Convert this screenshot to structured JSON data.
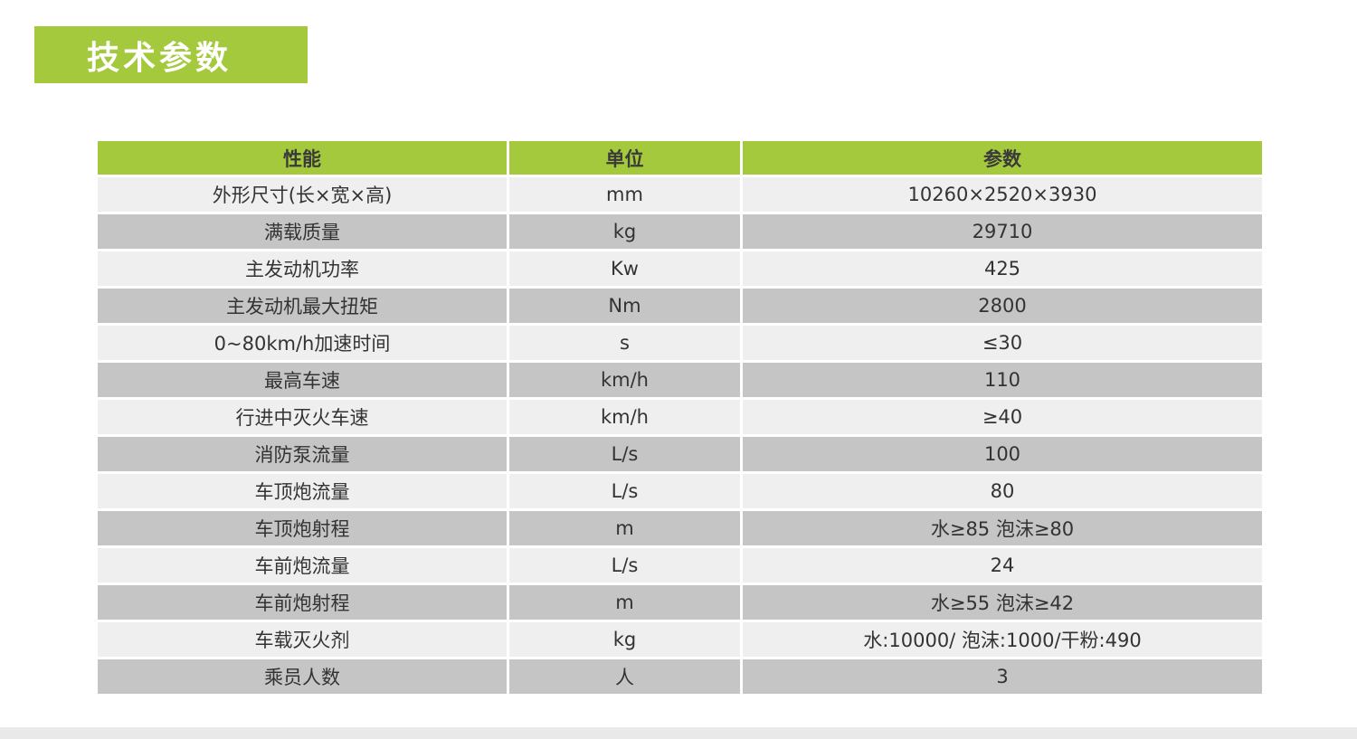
{
  "title": "技术参数",
  "colors": {
    "accent_green": "#a4c93d",
    "row_light": "#efefef",
    "row_dark": "#c5c5c5",
    "header_text": "#3a3a3a",
    "title_text": "#ffffff",
    "body_text": "#333333"
  },
  "table": {
    "headers": [
      "性能",
      "单位",
      "参数"
    ],
    "rows": [
      [
        "外形尺寸(长×宽×高)",
        "mm",
        "10260×2520×3930"
      ],
      [
        "满载质量",
        "kg",
        "29710"
      ],
      [
        "主发动机功率",
        "Kw",
        "425"
      ],
      [
        "主发动机最大扭矩",
        "Nm",
        "2800"
      ],
      [
        "0~80km/h加速时间",
        "s",
        "≤30"
      ],
      [
        "最高车速",
        "km/h",
        "110"
      ],
      [
        "行进中灭火车速",
        "km/h",
        "≥40"
      ],
      [
        "消防泵流量",
        "L/s",
        "100"
      ],
      [
        "车顶炮流量",
        "L/s",
        "80"
      ],
      [
        "车顶炮射程",
        "m",
        "水≥85 泡沫≥80"
      ],
      [
        "车前炮流量",
        "L/s",
        "24"
      ],
      [
        "车前炮射程",
        "m",
        "水≥55 泡沫≥42"
      ],
      [
        "车载灭火剂",
        "kg",
        "水:10000/ 泡沫:1000/干粉:490"
      ],
      [
        "乘员人数",
        "人",
        "3"
      ]
    ]
  }
}
